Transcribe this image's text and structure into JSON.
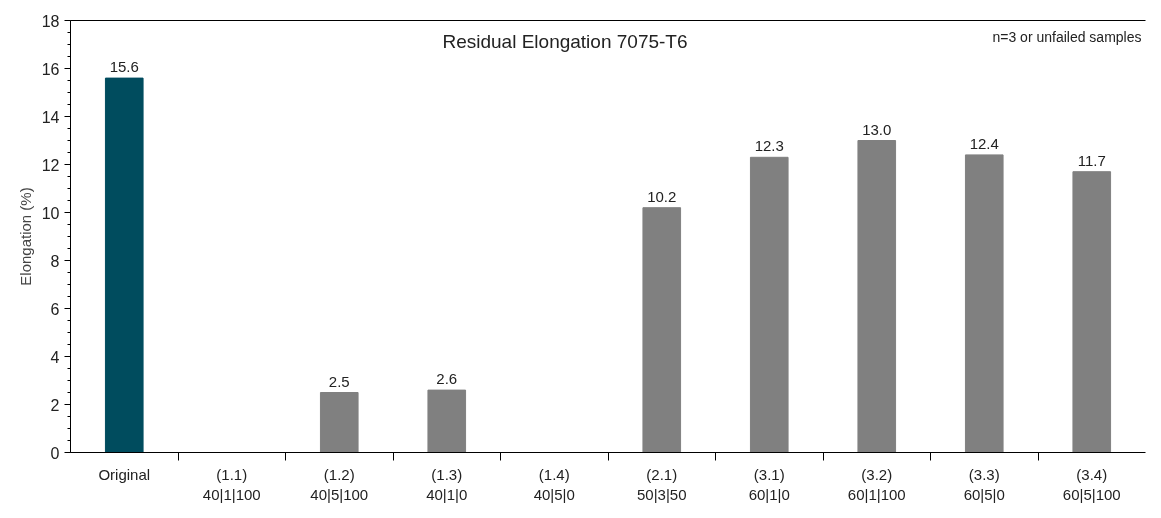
{
  "chart_data": {
    "type": "bar",
    "title": "Residual Elongation 7075-T6",
    "ylabel": "Elongation (%)",
    "annotations": [
      "n=3 or unfailed samples"
    ],
    "categories": [
      "Original",
      "(1.1)\n40|1|100",
      "(1.2)\n40|5|100",
      "(1.3)\n40|1|0",
      "(1.4)\n40|5|0",
      "(2.1)\n50|3|50",
      "(3.1)\n60|1|0",
      "(3.2)\n60|1|100",
      "(3.3)\n60|5|0",
      "(3.4)\n60|5|100"
    ],
    "values": [
      15.6,
      null,
      2.5,
      2.6,
      null,
      10.2,
      12.3,
      13.0,
      12.4,
      11.7
    ],
    "value_labels": [
      "15.6",
      null,
      "2.5",
      "2.6",
      null,
      "10.2",
      "12.3",
      "13.0",
      "12.4",
      "11.7"
    ],
    "colors": [
      "#004c5e",
      "#808080",
      "#808080",
      "#808080",
      "#808080",
      "#808080",
      "#808080",
      "#808080",
      "#808080",
      "#808080"
    ],
    "ylim": [
      0,
      18
    ],
    "yticks": [
      0,
      2,
      4,
      6,
      8,
      10,
      12,
      14,
      16,
      18
    ],
    "grid": false
  }
}
